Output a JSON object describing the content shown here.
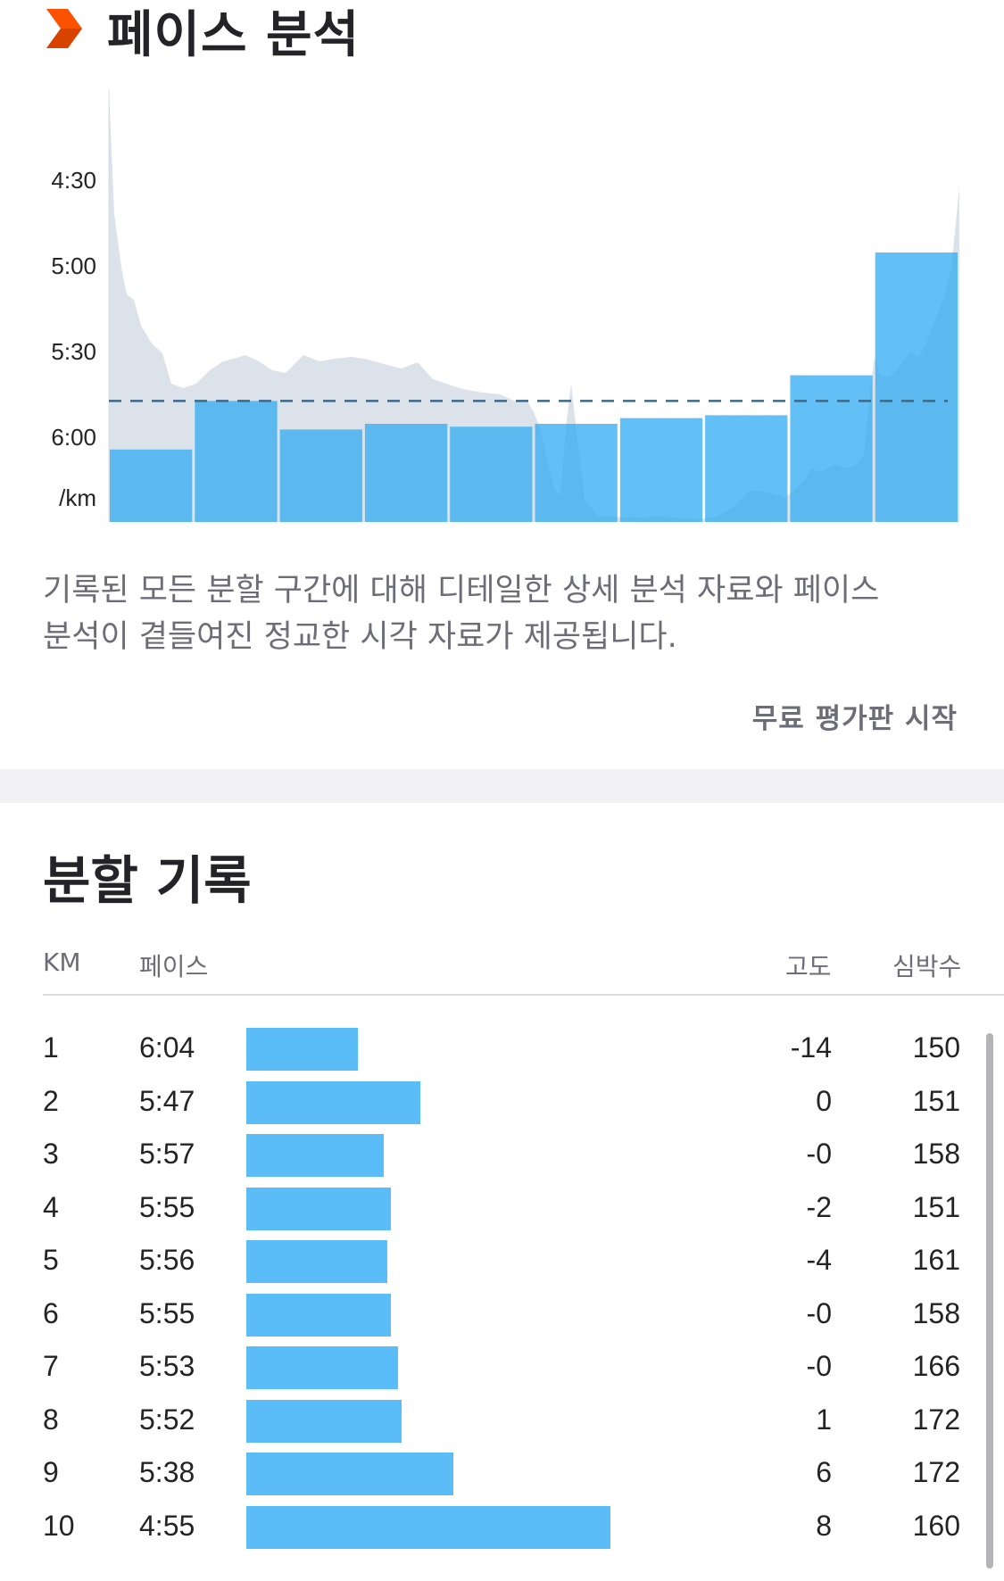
{
  "pace_section": {
    "title": "페이스 분석",
    "description_line1": "기록된 모든 분할 구간에 대해 디테일한 상세 분석 자료와 페이스",
    "description_line2": "분석이 곁들여진 정교한 시각 자료가 제공됩니다.",
    "trial_button": "무료 평가판 시작"
  },
  "splits_section": {
    "title": "분할 기록",
    "headers": {
      "km": "KM",
      "pace": "페이스",
      "elevation": "고도",
      "heart_rate": "심박수"
    },
    "rows": [
      {
        "km": "1",
        "pace": "6:04",
        "elevation": "-14",
        "heart_rate": "150"
      },
      {
        "km": "2",
        "pace": "5:47",
        "elevation": "0",
        "heart_rate": "151"
      },
      {
        "km": "3",
        "pace": "5:57",
        "elevation": "-0",
        "heart_rate": "158"
      },
      {
        "km": "4",
        "pace": "5:55",
        "elevation": "-2",
        "heart_rate": "151"
      },
      {
        "km": "5",
        "pace": "5:56",
        "elevation": "-4",
        "heart_rate": "161"
      },
      {
        "km": "6",
        "pace": "5:55",
        "elevation": "-0",
        "heart_rate": "158"
      },
      {
        "km": "7",
        "pace": "5:53",
        "elevation": "-0",
        "heart_rate": "166"
      },
      {
        "km": "8",
        "pace": "5:52",
        "elevation": "1",
        "heart_rate": "172"
      },
      {
        "km": "9",
        "pace": "5:38",
        "elevation": "6",
        "heart_rate": "172"
      },
      {
        "km": "10",
        "pace": "4:55",
        "elevation": "8",
        "heart_rate": "160"
      }
    ]
  },
  "colors": {
    "accent": "#fc5200",
    "bar": "#5bbdf7",
    "bar_dark": "#4aa8e3",
    "area": "#ececef",
    "average_line": "#3d6a8a"
  },
  "icons": {
    "logo": "strava-chevron-icon"
  },
  "chart_data": {
    "type": "bar",
    "y_tick_labels": [
      "4:30",
      "5:00",
      "5:30",
      "6:00"
    ],
    "y_unit": "/km",
    "y_axis": "pace, inverted (faster at top)",
    "categories": [
      "1",
      "2",
      "3",
      "4",
      "5",
      "6",
      "7",
      "8",
      "9",
      "10"
    ],
    "values_pace_seconds": [
      364,
      347,
      357,
      355,
      356,
      355,
      353,
      352,
      338,
      295
    ],
    "average_pace_seconds": 347,
    "grid": false,
    "legend": "none"
  }
}
